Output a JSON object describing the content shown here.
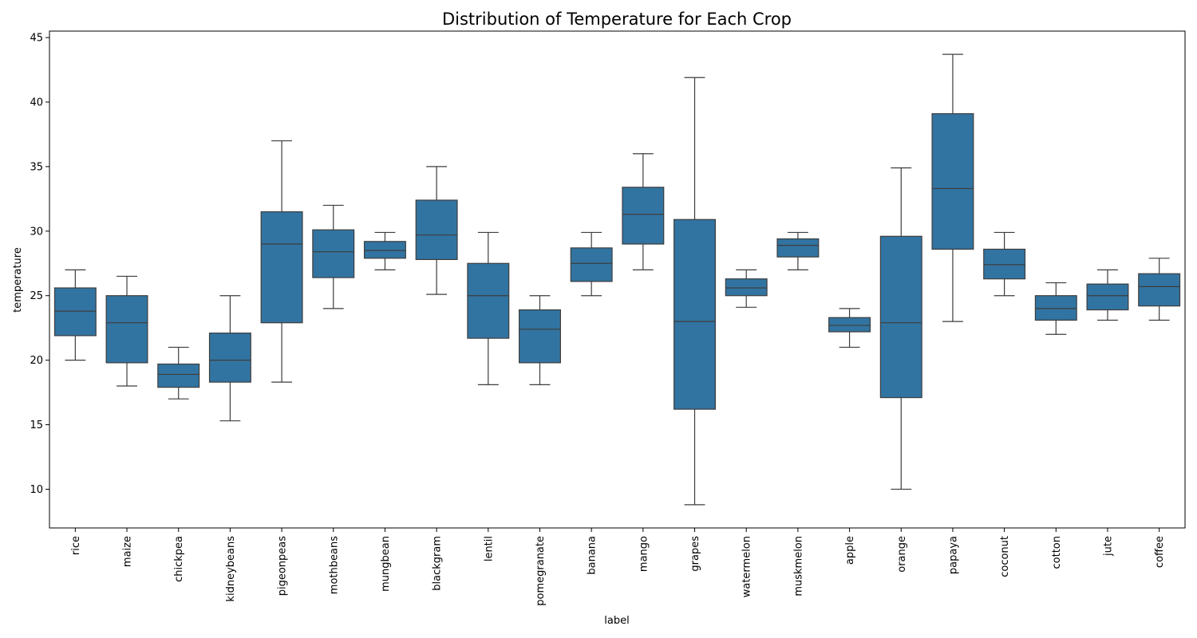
{
  "chart_data": {
    "type": "box",
    "title": "Distribution of Temperature for Each Crop",
    "xlabel": "label",
    "ylabel": "temperature",
    "ylim": [
      7,
      45.5
    ],
    "yticks": [
      10,
      15,
      20,
      25,
      30,
      35,
      40,
      45
    ],
    "grid": false,
    "box_color": "#3274a1",
    "line_color": "#3d3d3d",
    "categories": [
      "rice",
      "maize",
      "chickpea",
      "kidneybeans",
      "pigeonpeas",
      "mothbeans",
      "mungbean",
      "blackgram",
      "lentil",
      "pomegranate",
      "banana",
      "mango",
      "grapes",
      "watermelon",
      "muskmelon",
      "apple",
      "orange",
      "papaya",
      "coconut",
      "cotton",
      "jute",
      "coffee"
    ],
    "series": [
      {
        "category": "rice",
        "whisker_low": 20.0,
        "q1": 21.9,
        "median": 23.8,
        "q3": 25.6,
        "whisker_high": 27.0
      },
      {
        "category": "maize",
        "whisker_low": 18.0,
        "q1": 19.8,
        "median": 22.9,
        "q3": 25.0,
        "whisker_high": 26.5
      },
      {
        "category": "chickpea",
        "whisker_low": 17.0,
        "q1": 17.9,
        "median": 18.9,
        "q3": 19.7,
        "whisker_high": 21.0
      },
      {
        "category": "kidneybeans",
        "whisker_low": 15.3,
        "q1": 18.3,
        "median": 20.0,
        "q3": 22.1,
        "whisker_high": 25.0
      },
      {
        "category": "pigeonpeas",
        "whisker_low": 18.3,
        "q1": 22.9,
        "median": 29.0,
        "q3": 31.5,
        "whisker_high": 37.0
      },
      {
        "category": "mothbeans",
        "whisker_low": 24.0,
        "q1": 26.4,
        "median": 28.4,
        "q3": 30.1,
        "whisker_high": 32.0
      },
      {
        "category": "mungbean",
        "whisker_low": 27.0,
        "q1": 27.9,
        "median": 28.5,
        "q3": 29.2,
        "whisker_high": 29.9
      },
      {
        "category": "blackgram",
        "whisker_low": 25.1,
        "q1": 27.8,
        "median": 29.7,
        "q3": 32.4,
        "whisker_high": 35.0
      },
      {
        "category": "lentil",
        "whisker_low": 18.1,
        "q1": 21.7,
        "median": 25.0,
        "q3": 27.5,
        "whisker_high": 29.9
      },
      {
        "category": "pomegranate",
        "whisker_low": 18.1,
        "q1": 19.8,
        "median": 22.4,
        "q3": 23.9,
        "whisker_high": 25.0
      },
      {
        "category": "banana",
        "whisker_low": 25.0,
        "q1": 26.1,
        "median": 27.5,
        "q3": 28.7,
        "whisker_high": 29.9
      },
      {
        "category": "mango",
        "whisker_low": 27.0,
        "q1": 29.0,
        "median": 31.3,
        "q3": 33.4,
        "whisker_high": 36.0
      },
      {
        "category": "grapes",
        "whisker_low": 8.8,
        "q1": 16.2,
        "median": 23.0,
        "q3": 30.9,
        "whisker_high": 41.9
      },
      {
        "category": "watermelon",
        "whisker_low": 24.1,
        "q1": 25.0,
        "median": 25.6,
        "q3": 26.3,
        "whisker_high": 27.0
      },
      {
        "category": "muskmelon",
        "whisker_low": 27.0,
        "q1": 28.0,
        "median": 28.9,
        "q3": 29.4,
        "whisker_high": 29.9
      },
      {
        "category": "apple",
        "whisker_low": 21.0,
        "q1": 22.2,
        "median": 22.7,
        "q3": 23.3,
        "whisker_high": 24.0
      },
      {
        "category": "orange",
        "whisker_low": 10.0,
        "q1": 17.1,
        "median": 22.9,
        "q3": 29.6,
        "whisker_high": 34.9
      },
      {
        "category": "papaya",
        "whisker_low": 23.0,
        "q1": 28.6,
        "median": 33.3,
        "q3": 39.1,
        "whisker_high": 43.7
      },
      {
        "category": "coconut",
        "whisker_low": 25.0,
        "q1": 26.3,
        "median": 27.4,
        "q3": 28.6,
        "whisker_high": 29.9
      },
      {
        "category": "cotton",
        "whisker_low": 22.0,
        "q1": 23.1,
        "median": 24.0,
        "q3": 25.0,
        "whisker_high": 26.0
      },
      {
        "category": "jute",
        "whisker_low": 23.1,
        "q1": 23.9,
        "median": 25.0,
        "q3": 25.9,
        "whisker_high": 27.0
      },
      {
        "category": "coffee",
        "whisker_low": 23.1,
        "q1": 24.2,
        "median": 25.7,
        "q3": 26.7,
        "whisker_high": 27.9
      }
    ]
  }
}
